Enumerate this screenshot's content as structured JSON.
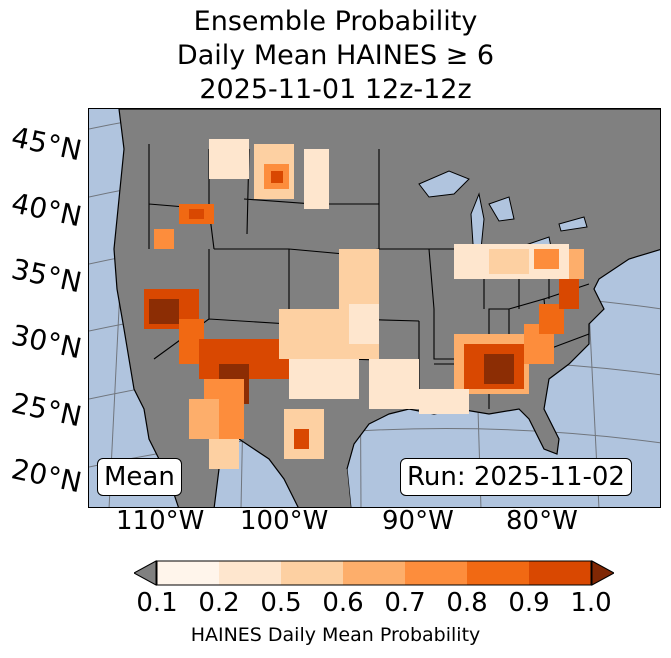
{
  "title": {
    "line1": "Ensemble Probability",
    "line2": "Daily Mean HAINES ≥ 6",
    "line3": "2025-11-01 12z-12z"
  },
  "map": {
    "lat_labels": [
      "45°N",
      "40°N",
      "35°N",
      "30°N",
      "25°N",
      "20°N"
    ],
    "lon_labels": [
      "110°W",
      "100°W",
      "90°W",
      "80°W"
    ],
    "mean_label": "Mean",
    "run_label": "Run: 2025-11-02",
    "colors": {
      "ocean": "#b0c4de",
      "land_nodata": "#808080",
      "borders": "#000000"
    }
  },
  "colorbar": {
    "label": "HAINES Daily Mean Probability",
    "ticks": [
      "0.1",
      "0.2",
      "0.5",
      "0.6",
      "0.7",
      "0.8",
      "0.9",
      "1.0"
    ],
    "colors": [
      "#fff5eb",
      "#fee6ce",
      "#fdd0a2",
      "#fdae6b",
      "#fd8d3c",
      "#f16913",
      "#d94801",
      "#8c2d04"
    ],
    "under_color": "#808080",
    "over_color": "#7f2704"
  }
}
